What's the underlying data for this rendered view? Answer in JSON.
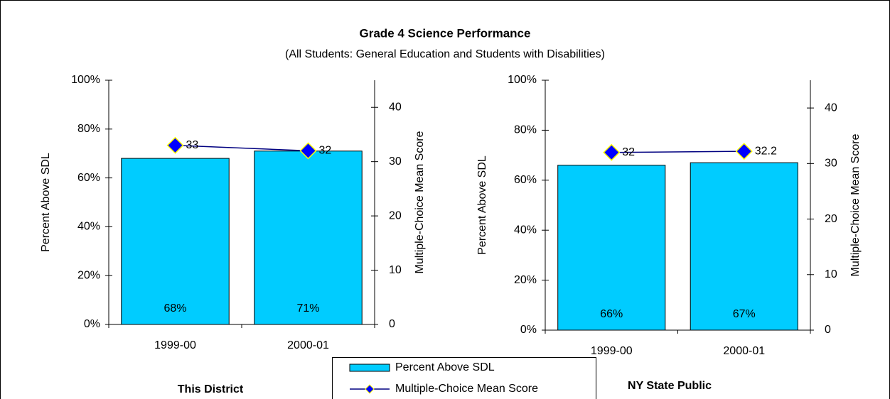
{
  "chart_data": [
    {
      "type": "bar",
      "title": "Grade 4 Science Performance",
      "subtitle": "(All Students: General Education and Students with Disabilities)",
      "label": "This District",
      "categories": [
        "1999-00",
        "2000-01"
      ],
      "series": [
        {
          "name": "Percent Above SDL",
          "type": "bar",
          "color": "#00ccff",
          "values": [
            68,
            71
          ],
          "value_labels": [
            "68%",
            "71%"
          ]
        },
        {
          "name": "Multiple-Choice Mean Score",
          "type": "line",
          "axis": "y2",
          "color": "#000080",
          "marker_color": "#0000ff",
          "marker_edge": "#ffff00",
          "values": [
            33,
            32
          ]
        }
      ],
      "ylabel": "Percent Above SDL",
      "y2label": "Multiple-Choice Mean Score",
      "ylim": [
        0,
        100
      ],
      "yticks": [
        {
          "value": 0,
          "label": "0%"
        },
        {
          "value": 20,
          "label": "20%"
        },
        {
          "value": 40,
          "label": "40%"
        },
        {
          "value": 60,
          "label": "60%"
        },
        {
          "value": 80,
          "label": "80%"
        },
        {
          "value": 100,
          "label": "100%"
        }
      ],
      "y2lim": [
        0,
        45
      ],
      "y2ticks": [
        0,
        10,
        20,
        30,
        40
      ]
    },
    {
      "type": "bar",
      "label": "NY State Public",
      "categories": [
        "1999-00",
        "2000-01"
      ],
      "series": [
        {
          "type": "bar",
          "color": "#00ccff",
          "values": [
            66,
            67
          ],
          "value_labels": [
            "66%",
            "67%"
          ]
        },
        {
          "type": "line",
          "axis": "y2",
          "color": "#000080",
          "marker_color": "#0000ff",
          "marker_edge": "#ffff00",
          "values": [
            32,
            32.2
          ]
        }
      ],
      "ylabel": "Percent Above SDL",
      "y2label": "Multiple-Choice Mean Score",
      "ylim": [
        0,
        100
      ],
      "yticks": [
        {
          "value": 0,
          "label": "0%"
        },
        {
          "value": 20,
          "label": "20%"
        },
        {
          "value": 40,
          "label": "40%"
        },
        {
          "value": 60,
          "label": "60%"
        },
        {
          "value": 80,
          "label": "80%"
        },
        {
          "value": 100,
          "label": "100%"
        }
      ],
      "y2lim": [
        0,
        45
      ],
      "y2ticks": [
        0,
        10,
        20,
        30,
        40
      ]
    }
  ]
}
